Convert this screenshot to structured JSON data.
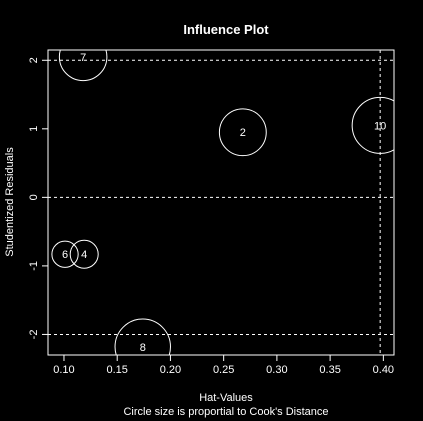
{
  "chart_data": {
    "type": "scatter",
    "title": "Influence Plot",
    "xlabel": "Hat-Values",
    "subtitle": "Circle size is proportial to Cook's Distance",
    "ylabel": "Studentized Residuals",
    "xlim": [
      0.085,
      0.41
    ],
    "ylim": [
      -2.3,
      2.15
    ],
    "x_ticks": [
      "0.10",
      "0.15",
      "0.20",
      "0.25",
      "0.30",
      "0.35",
      "0.40"
    ],
    "y_ticks": [
      "-2",
      "-1",
      "0",
      "1",
      "2"
    ],
    "reference_lines": {
      "horizontal": [
        -2,
        0,
        2
      ],
      "vertical": [
        0.397
      ]
    },
    "points": [
      {
        "label": "7",
        "x": 0.118,
        "y": 2.05,
        "cooks_distance": 0.72
      },
      {
        "label": "2",
        "x": 0.268,
        "y": 0.95,
        "cooks_distance": 0.7
      },
      {
        "label": "10",
        "x": 0.397,
        "y": 1.05,
        "cooks_distance": 1.0
      },
      {
        "label": "6",
        "x": 0.101,
        "y": -0.83,
        "cooks_distance": 0.22
      },
      {
        "label": "4",
        "x": 0.119,
        "y": -0.83,
        "cooks_distance": 0.25
      },
      {
        "label": "8",
        "x": 0.174,
        "y": -2.18,
        "cooks_distance": 0.98
      }
    ]
  }
}
